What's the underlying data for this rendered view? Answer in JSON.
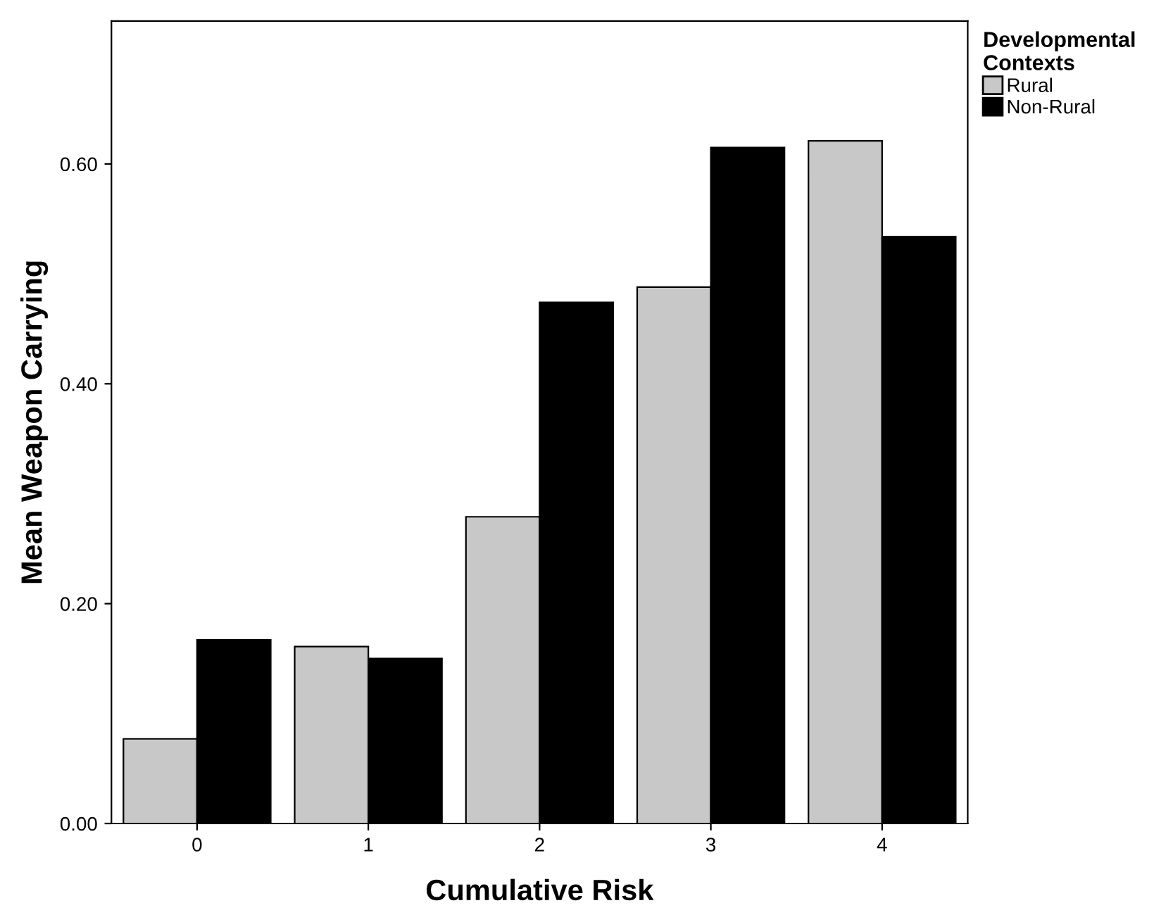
{
  "chart_data": {
    "type": "bar",
    "xlabel": "Cumulative Risk",
    "ylabel": "Mean Weapon Carrying",
    "legend_title": "Developmental\nContexts",
    "categories": [
      "0",
      "1",
      "2",
      "3",
      "4"
    ],
    "series": [
      {
        "name": "Rural",
        "color": "#c8c8c8",
        "values": [
          0.077,
          0.161,
          0.279,
          0.488,
          0.621
        ]
      },
      {
        "name": "Non-Rural",
        "color": "#000000",
        "values": [
          0.167,
          0.15,
          0.474,
          0.615,
          0.534
        ]
      }
    ],
    "ylim": [
      0,
      0.73
    ],
    "yticks": [
      {
        "value": 0,
        "label": "0.00"
      },
      {
        "value": 0.2,
        "label": "0.20"
      },
      {
        "value": 0.4,
        "label": "0.40"
      },
      {
        "value": 0.6,
        "label": "0.60"
      }
    ],
    "grid": false,
    "legend": "top right"
  }
}
